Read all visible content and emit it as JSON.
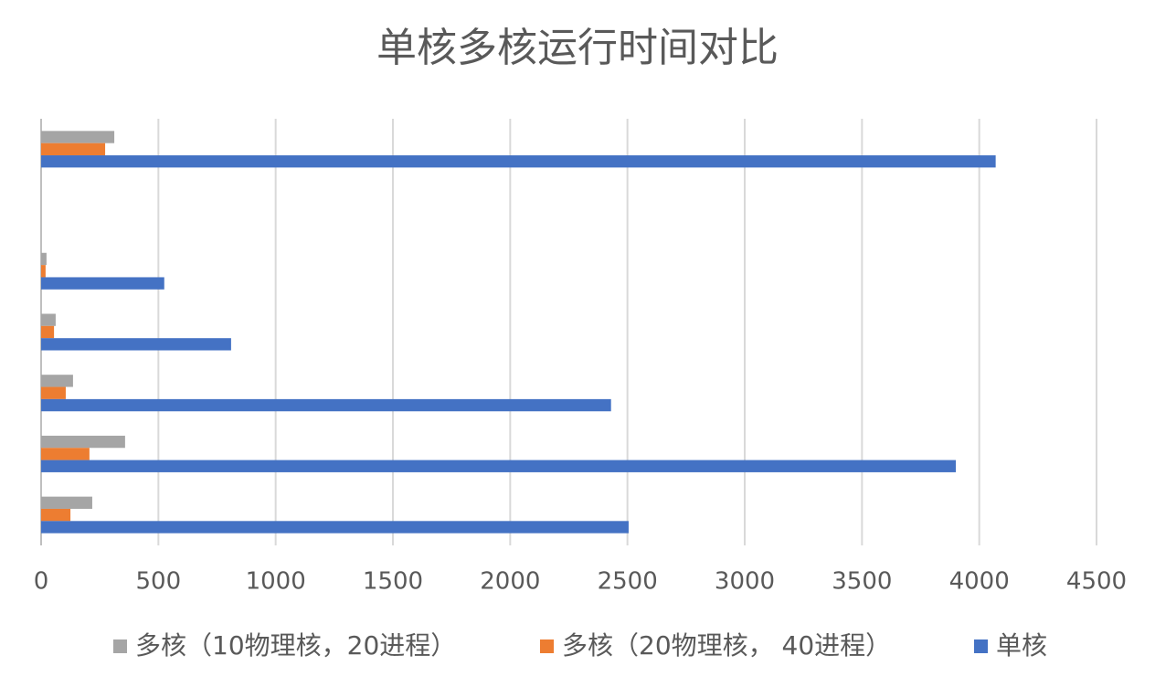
{
  "chart_data": {
    "type": "hbar",
    "title": "单核多核运行时间对比",
    "categories": [
      null,
      null,
      null,
      null,
      null,
      null,
      null
    ],
    "series": [
      {
        "name": "多核（10物理核，20进程）",
        "color": "#a5a5a5",
        "values": [
          312,
          null,
          23,
          62,
          136,
          358,
          218
        ]
      },
      {
        "name": "多核（20物理核， 40进程）",
        "color": "#ed7d31",
        "values": [
          273,
          null,
          19,
          55,
          105,
          206,
          125
        ]
      },
      {
        "name": "单核",
        "color": "#4472c4",
        "values": [
          4070,
          null,
          525,
          810,
          2430,
          3900,
          2505
        ]
      }
    ],
    "xlim": [
      0,
      4500
    ],
    "xticks": [
      0,
      500,
      1000,
      1500,
      2000,
      2500,
      3000,
      3500,
      4000,
      4500
    ],
    "grid": true,
    "legend": "bottom"
  }
}
